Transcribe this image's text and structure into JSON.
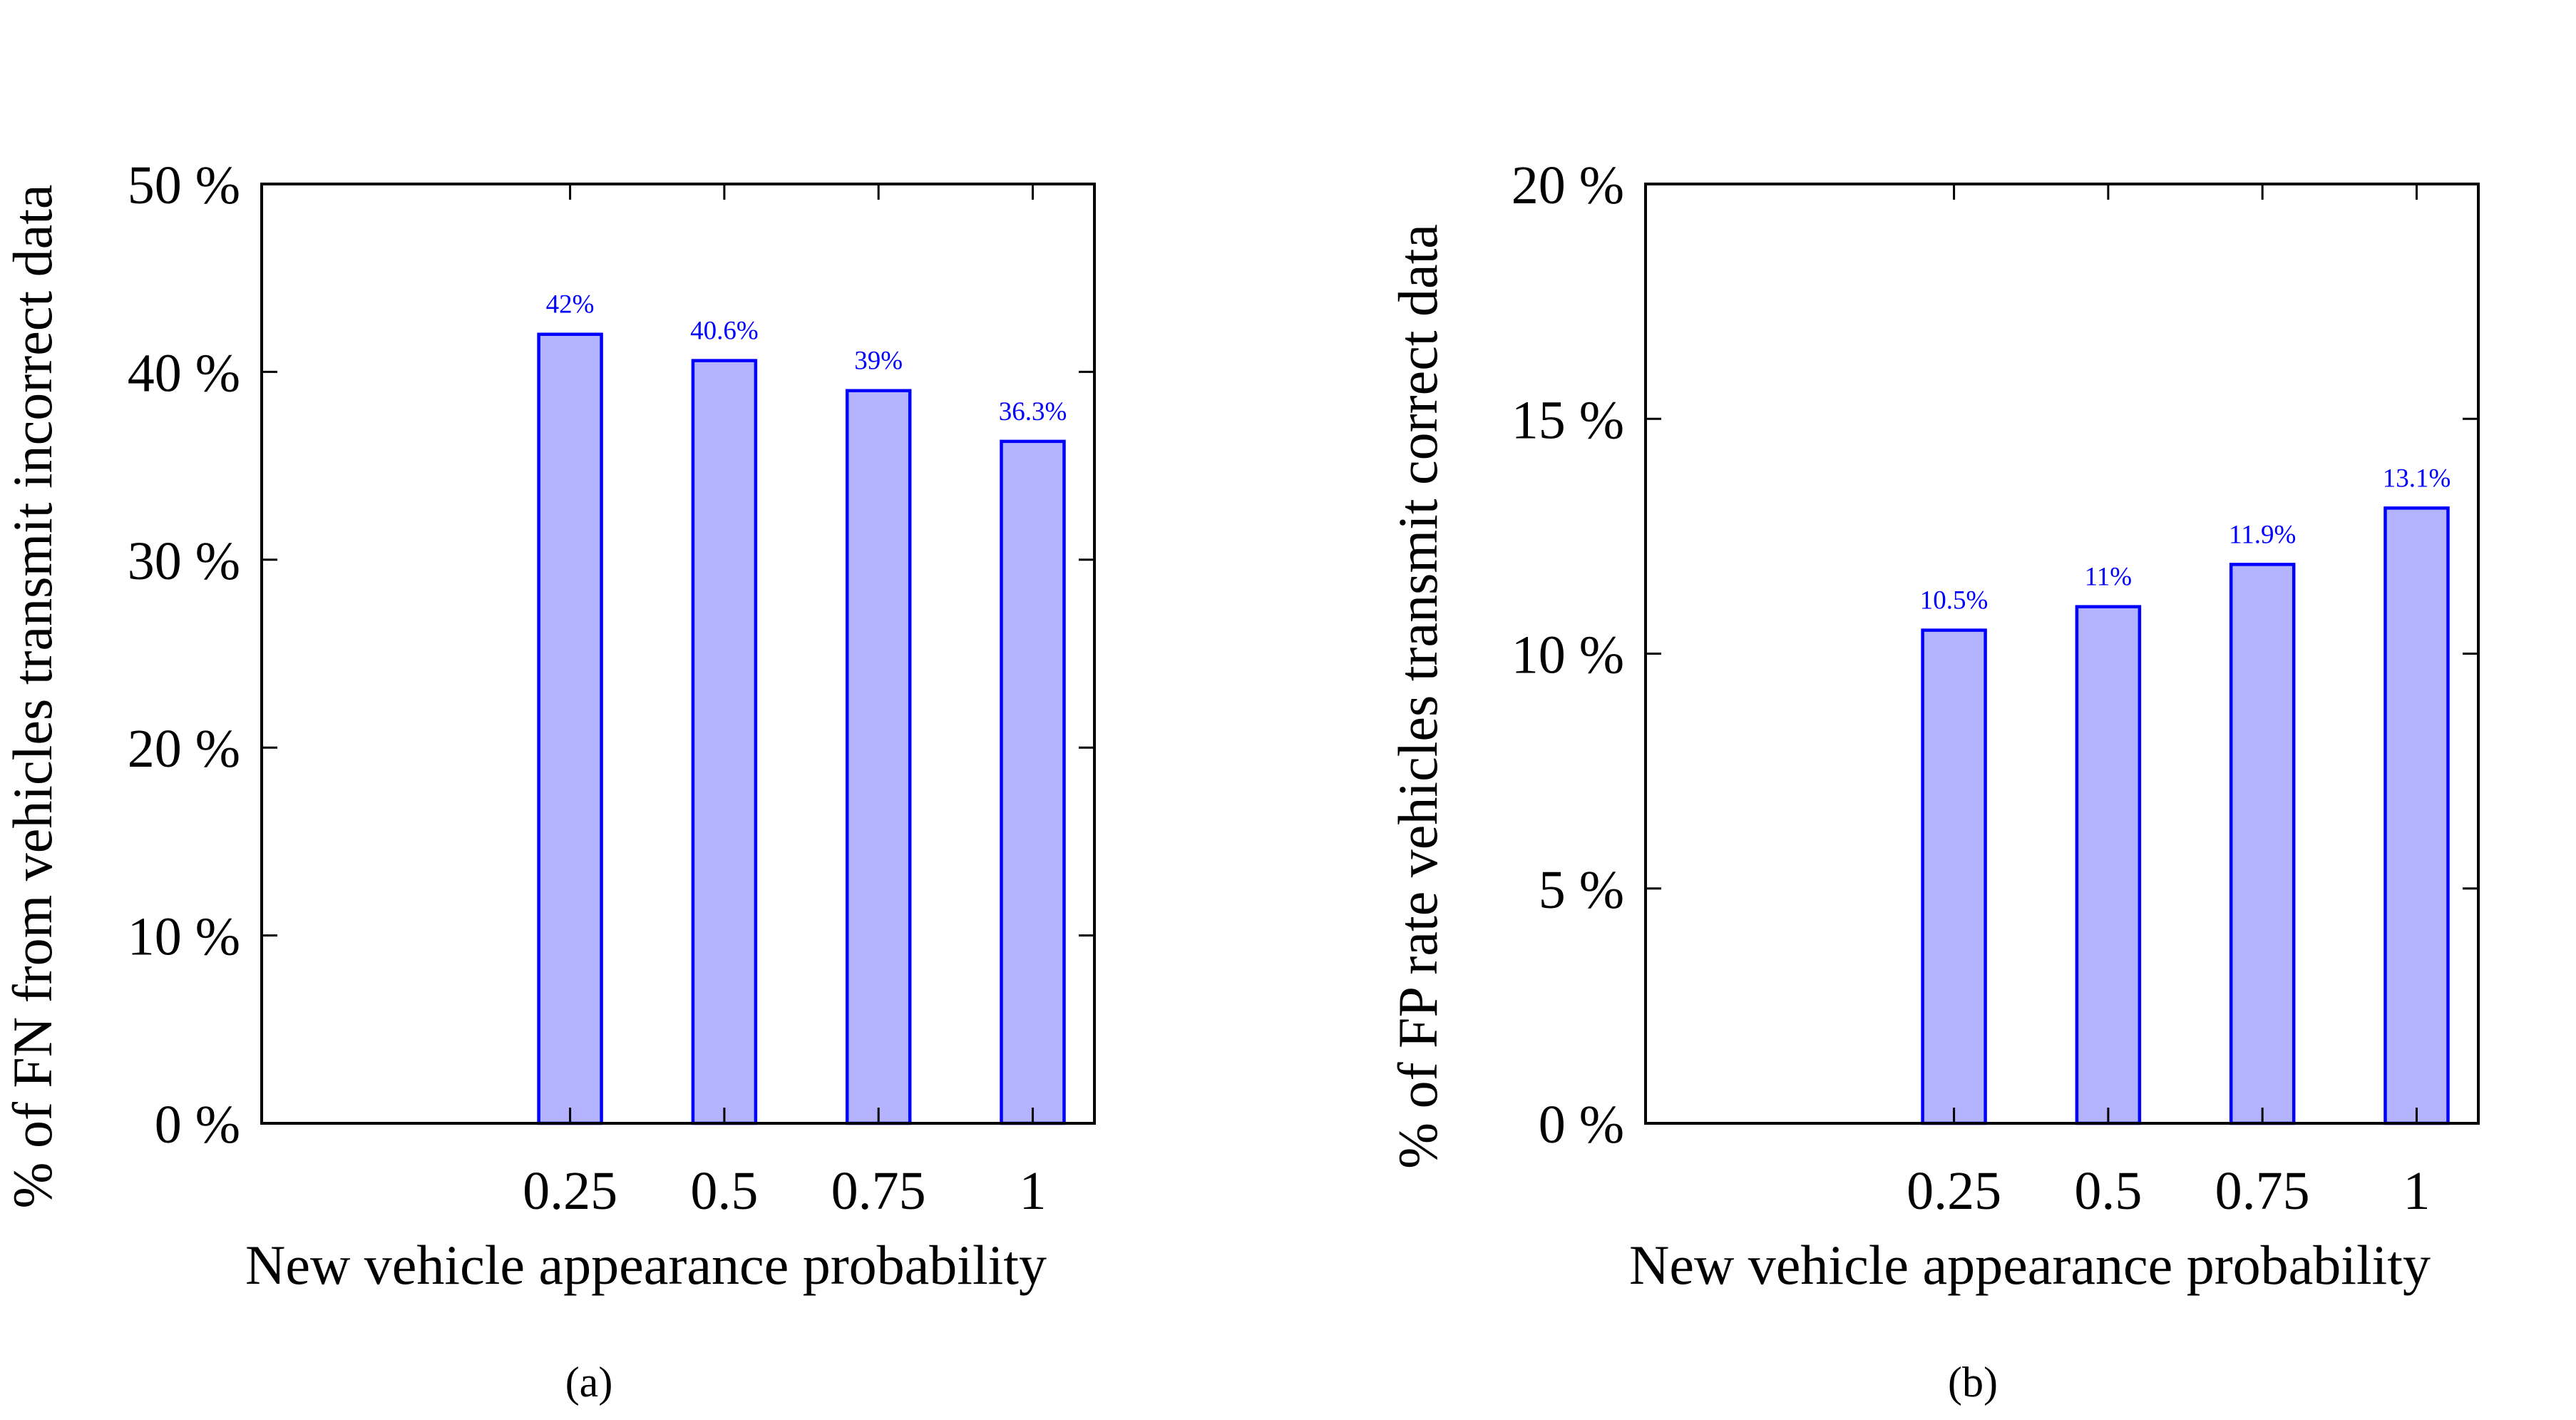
{
  "colors": {
    "bar_fill": "#b3b3ff",
    "bar_stroke": "#0000ff",
    "label": "#0000ff",
    "axis": "#000000"
  },
  "chart_data": [
    {
      "type": "bar",
      "caption": "(a)",
      "categories": [
        "0.25",
        "0.5",
        "0.75",
        "1"
      ],
      "x": [
        0.25,
        0.5,
        0.75,
        1
      ],
      "values": [
        42,
        40.6,
        39,
        36.3
      ],
      "data_labels": [
        "42%",
        "40.6%",
        "39%",
        "36.3%"
      ],
      "xlabel": "New vehicle appearance probability",
      "ylabel": "% of FN from vehicles transmit incorrect data",
      "ylim": [
        0,
        50
      ],
      "xlim": [
        -0.25,
        1.1
      ],
      "yticks": [
        0,
        10,
        20,
        30,
        40,
        50
      ],
      "ytick_labels": [
        "0 %",
        "10 %",
        "20 %",
        "30 %",
        "40 %",
        "50 %"
      ],
      "grid": false
    },
    {
      "type": "bar",
      "caption": "(b)",
      "categories": [
        "0.25",
        "0.5",
        "0.75",
        "1"
      ],
      "x": [
        0.25,
        0.5,
        0.75,
        1
      ],
      "values": [
        10.5,
        11,
        11.9,
        13.1
      ],
      "data_labels": [
        "10.5%",
        "11%",
        "11.9%",
        "13.1%"
      ],
      "xlabel": "New vehicle appearance probability",
      "ylabel": "% of FP rate vehicles transmit correct data",
      "ylim": [
        0,
        20
      ],
      "xlim": [
        -0.25,
        1.1
      ],
      "yticks": [
        0,
        5,
        10,
        15,
        20
      ],
      "ytick_labels": [
        "0 %",
        "5 %",
        "10 %",
        "15 %",
        "20 %"
      ],
      "grid": false
    }
  ]
}
